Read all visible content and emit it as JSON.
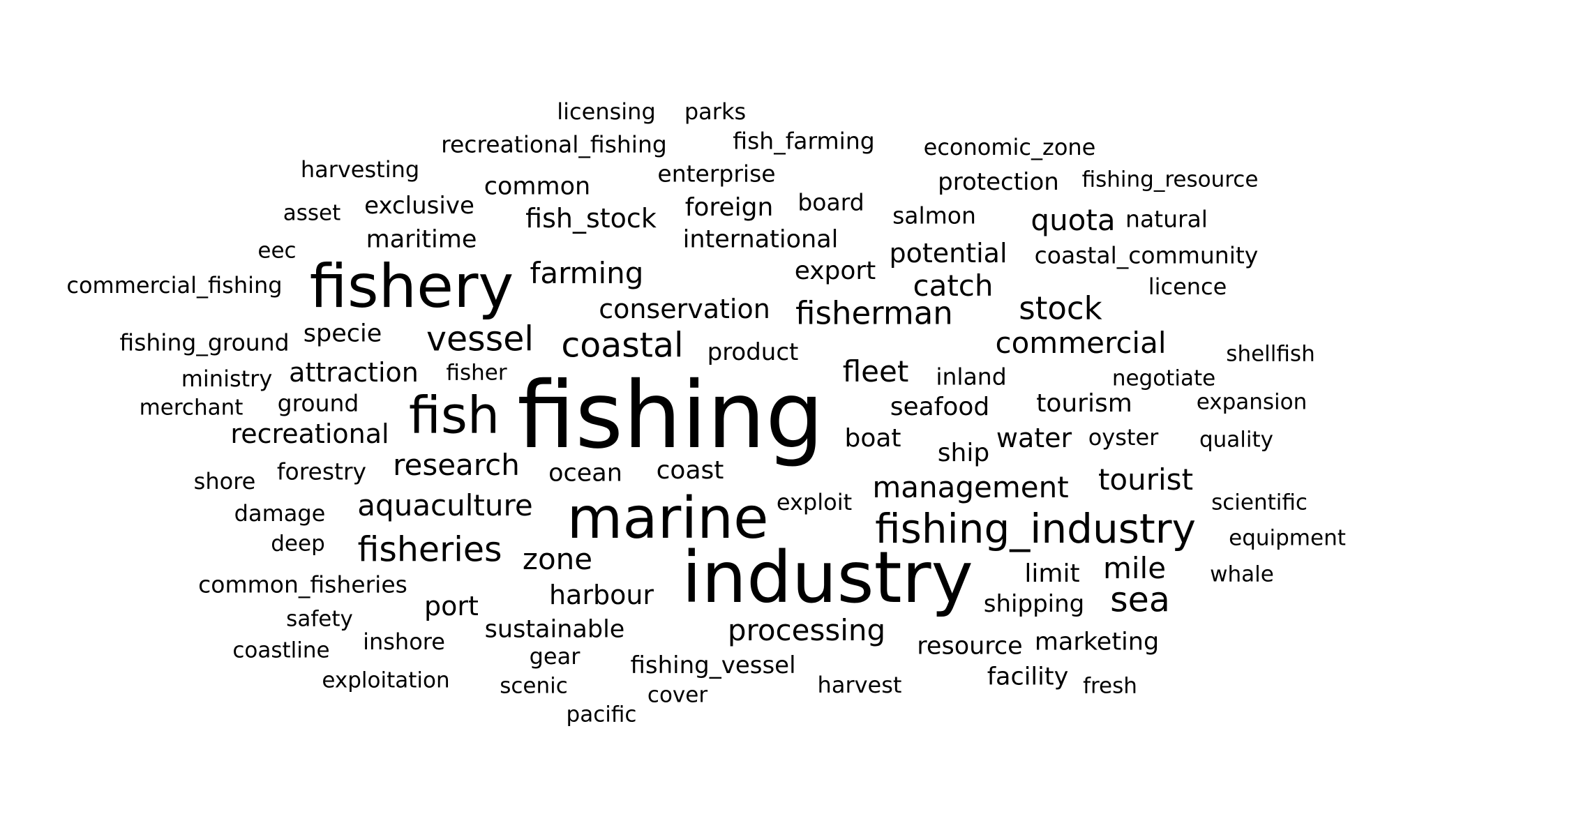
{
  "words": [
    "fishing",
    "industry",
    "marine",
    "fishery",
    "fish",
    "fishing_industry",
    "coastal",
    "vessel",
    "fisheries",
    "processing",
    "aquaculture",
    "research",
    "sea",
    "fisherman",
    "commercial",
    "stock",
    "recreational",
    "zone",
    "catch",
    "farming",
    "potential",
    "harbour",
    "sustainable",
    "conservation",
    "fleet",
    "management",
    "tourist",
    "quota",
    "attraction",
    "port",
    "tourism",
    "seafood",
    "water",
    "boat",
    "international",
    "maritime",
    "fish_stock",
    "common",
    "mile",
    "ocean",
    "coast",
    "ship",
    "export",
    "foreign",
    "product",
    "resource",
    "marketing",
    "limit",
    "shipping",
    "facility",
    "fishing_vessel",
    "specie",
    "licensing",
    "parks",
    "recreational_fishing",
    "fish_farming",
    "economic_zone",
    "harvesting",
    "enterprise",
    "protection",
    "fishing_resource",
    "asset",
    "exclusive",
    "board",
    "salmon",
    "natural",
    "eec",
    "coastal_community",
    "commercial_fishing",
    "licence",
    "fishing_ground",
    "shellfish",
    "ministry",
    "fisher",
    "inland",
    "negotiate",
    "merchant",
    "ground",
    "expansion",
    "oyster",
    "quality",
    "shore",
    "forestry",
    "damage",
    "exploit",
    "scientific",
    "deep",
    "equipment",
    "common_fisheries",
    "whale",
    "safety",
    "coastline",
    "inshore",
    "gear",
    "exploitation",
    "scenic",
    "harvest",
    "fresh",
    "cover",
    "pacific"
  ]
}
